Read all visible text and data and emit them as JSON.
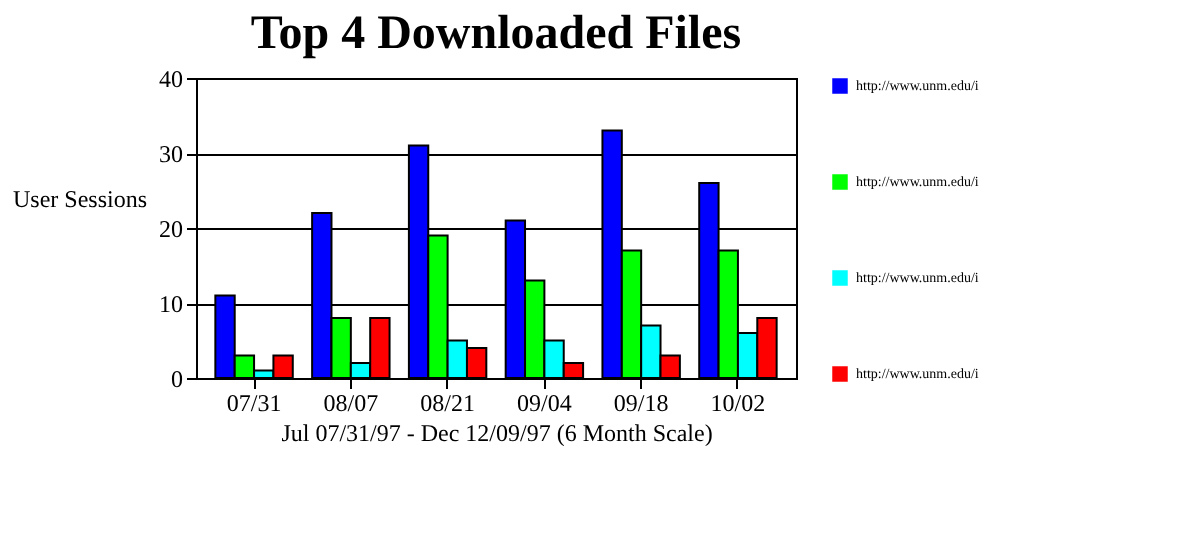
{
  "chart_data": {
    "type": "bar",
    "title": "Top 4 Downloaded Files",
    "xlabel": "Jul 07/31/97 - Dec 12/09/97 (6 Month Scale)",
    "ylabel": "User Sessions",
    "categories": [
      "07/31",
      "08/07",
      "08/21",
      "09/04",
      "09/18",
      "10/02"
    ],
    "series": [
      {
        "name": "http://www.unm.edu/i",
        "color": "#0000ff",
        "values": [
          11,
          22,
          31,
          21,
          33,
          26
        ]
      },
      {
        "name": "http://www.unm.edu/i",
        "color": "#00ff00",
        "values": [
          3,
          8,
          19,
          13,
          17,
          17
        ]
      },
      {
        "name": "http://www.unm.edu/i",
        "color": "#00ffff",
        "values": [
          1,
          2,
          5,
          5,
          7,
          6
        ]
      },
      {
        "name": "http://www.unm.edu/i",
        "color": "#ff0000",
        "values": [
          3,
          8,
          4,
          2,
          3,
          8
        ]
      }
    ],
    "ylim": [
      0,
      40
    ],
    "yticks": [
      0,
      10,
      20,
      30,
      40
    ],
    "grid": "y",
    "legend": "right"
  }
}
